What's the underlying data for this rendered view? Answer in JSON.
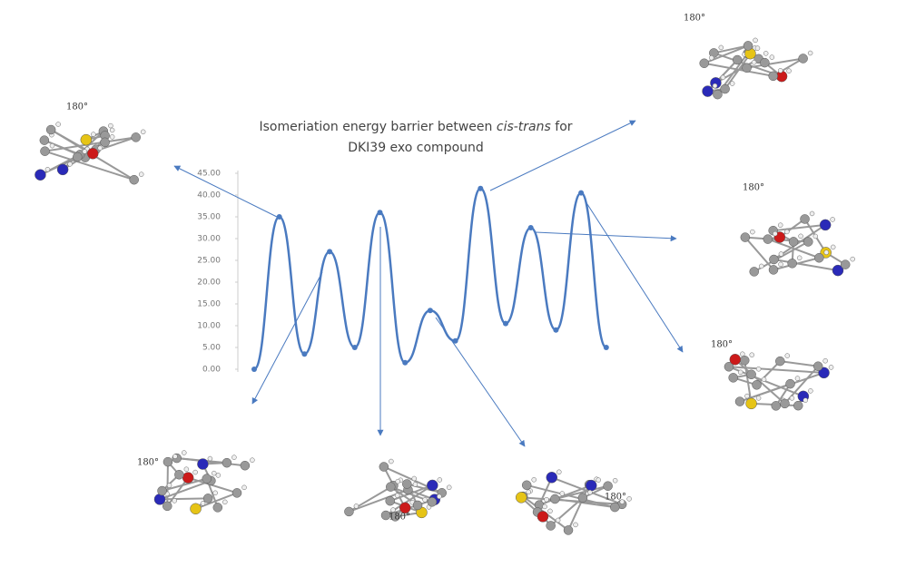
{
  "chart_data": {
    "type": "line",
    "title": [
      "Isomeriation energy barrier between ",
      "cis-trans",
      " for",
      "DKI39 exo compound"
    ],
    "categories": [
      null,
      null,
      null,
      null,
      null,
      null,
      null,
      null,
      null,
      null,
      null,
      null,
      null,
      null,
      null
    ],
    "series": [
      {
        "name": null,
        "color": "#4a7ac0",
        "values": [
          0,
          35,
          3.5,
          27,
          5,
          36,
          1.5,
          13.5,
          6.5,
          41.5,
          10.5,
          32.5,
          9,
          40.5,
          5
        ]
      }
    ],
    "ylim": [
      0,
      45
    ],
    "yticks": [
      {
        "value": 0,
        "label": "0.00"
      },
      {
        "value": 5,
        "label": "5.00"
      },
      {
        "value": 10,
        "label": "10.00"
      },
      {
        "value": 15,
        "label": "15.00"
      },
      {
        "value": 20,
        "label": "20.00"
      },
      {
        "value": 25,
        "label": "25.00"
      },
      {
        "value": 30,
        "label": "30.00"
      },
      {
        "value": 35,
        "label": "35.00"
      },
      {
        "value": 40,
        "label": "40.00"
      },
      {
        "value": 45,
        "label": "45.00"
      }
    ],
    "annotations": [
      "180°",
      "180°",
      "180°",
      "180°",
      "180°",
      "180°",
      "180°"
    ]
  }
}
